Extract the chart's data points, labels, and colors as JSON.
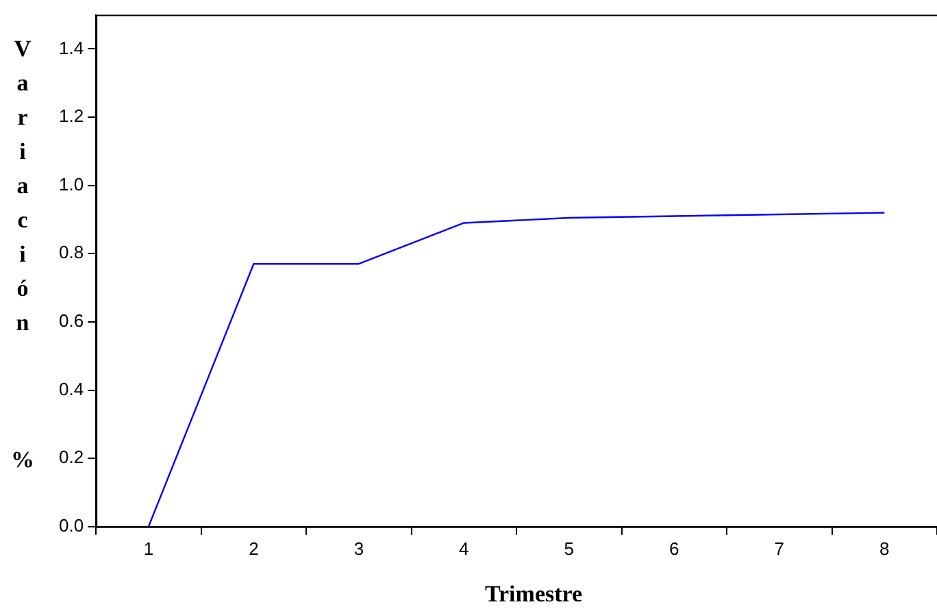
{
  "chart_data": {
    "type": "line",
    "xlabel": "Trimestre",
    "ylabel": "Variación %",
    "categories": [
      "1",
      "2",
      "3",
      "4",
      "5",
      "6",
      "7",
      "8"
    ],
    "series": [
      {
        "color": "#0000ff",
        "values": [
          0,
          0.77,
          0.77,
          0.89,
          0.905,
          0.91,
          0.915,
          0.92
        ]
      }
    ],
    "ylim": [
      0,
      1.5
    ],
    "yticks": [
      {
        "value": 0,
        "label": "0.0"
      },
      {
        "value": 0.2,
        "label": "0.2"
      },
      {
        "value": 0.4,
        "label": "0.4"
      },
      {
        "value": 0.6,
        "label": "0.6"
      },
      {
        "value": 0.8,
        "label": "0.8"
      },
      {
        "value": 1,
        "label": "1.0"
      },
      {
        "value": 1.2,
        "label": "1.2"
      },
      {
        "value": 1.4,
        "label": "1.4"
      }
    ],
    "grid": false,
    "legend": false,
    "marker": "none",
    "line_style": "solid"
  }
}
